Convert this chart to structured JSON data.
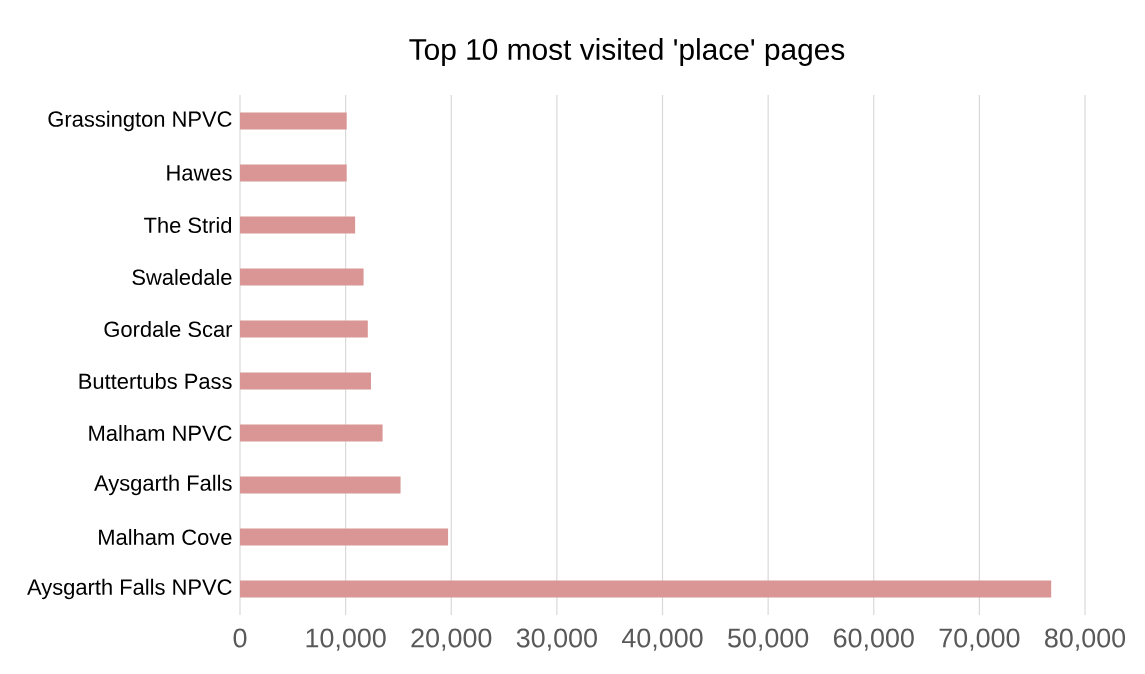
{
  "chart_data": {
    "type": "bar",
    "orientation": "horizontal",
    "title": "Top 10 most visited 'place' pages",
    "categories": [
      "Grassington NPVC",
      "Hawes",
      "The Strid",
      "Swaledale",
      "Gordale Scar",
      "Buttertubs Pass",
      "Malham NPVC",
      "Aysgarth Falls",
      "Malham Cove",
      "Aysgarth Falls NPVC"
    ],
    "values": [
      10100,
      10100,
      10900,
      11700,
      12100,
      12400,
      13500,
      15200,
      19700,
      76800
    ],
    "color": "#da9694",
    "xlim": [
      0,
      80000
    ],
    "xticks": [
      {
        "value": 0,
        "label": "0"
      },
      {
        "value": 10000,
        "label": "10,000"
      },
      {
        "value": 20000,
        "label": "20,000"
      },
      {
        "value": 30000,
        "label": "30,000"
      },
      {
        "value": 40000,
        "label": "40,000"
      },
      {
        "value": 50000,
        "label": "50,000"
      },
      {
        "value": 60000,
        "label": "60,000"
      },
      {
        "value": 70000,
        "label": "70,000"
      },
      {
        "value": 80000,
        "label": "80,000"
      }
    ],
    "grid": "x"
  }
}
